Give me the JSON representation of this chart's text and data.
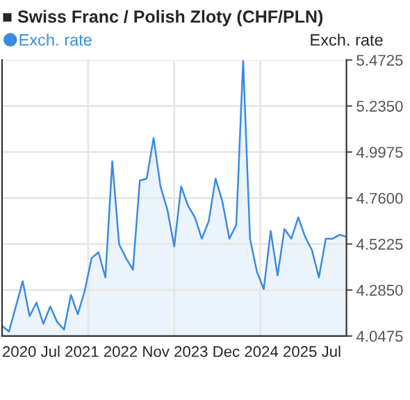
{
  "chart_data": {
    "type": "area",
    "title": "■ Swiss Franc / Polish Zloty (CHF/PLN)",
    "ylabel": "Exch. rate",
    "categories": [
      null,
      null,
      null,
      null,
      null,
      null,
      null,
      null,
      null,
      null,
      null,
      null,
      null,
      null,
      null,
      null,
      null,
      null,
      null,
      null,
      null,
      null,
      null,
      null,
      null,
      null,
      null,
      null,
      null,
      null,
      null,
      null,
      null,
      null,
      null,
      null,
      null,
      null,
      null,
      null,
      null,
      null,
      null,
      null,
      null,
      null,
      null,
      null,
      null,
      null,
      null
    ],
    "series": [
      {
        "name": "Exch. rate",
        "color": "#3a8be0",
        "values": [
          4.1,
          4.07,
          4.2,
          4.33,
          4.15,
          4.22,
          4.11,
          4.2,
          4.12,
          4.08,
          4.26,
          4.16,
          4.28,
          4.45,
          4.48,
          4.35,
          4.95,
          4.52,
          4.45,
          4.39,
          4.85,
          4.86,
          5.07,
          4.82,
          4.7,
          4.51,
          4.82,
          4.72,
          4.66,
          4.55,
          4.64,
          4.86,
          4.74,
          4.55,
          4.62,
          5.47,
          4.55,
          4.38,
          4.29,
          4.59,
          4.36,
          4.6,
          4.55,
          4.66,
          4.56,
          4.49,
          4.35,
          4.55,
          4.55,
          4.57,
          4.56
        ]
      }
    ],
    "ylim": [
      4.0475,
      5.4725
    ],
    "yticks": [
      {
        "value": 4.0475,
        "label": "4.0475"
      },
      {
        "value": 4.285,
        "label": "4.2850"
      },
      {
        "value": 4.5225,
        "label": "4.5225"
      },
      {
        "value": 4.76,
        "label": "4.7600"
      },
      {
        "value": 4.9975,
        "label": "4.9975"
      },
      {
        "value": 5.235,
        "label": "5.2350"
      },
      {
        "value": 5.4725,
        "label": "5.4725"
      }
    ],
    "annotations": [
      "2020 Jul 2021 2022 Nov 2023 Dec 2024 2025 Jul"
    ],
    "grid": true,
    "legend": "top left"
  }
}
